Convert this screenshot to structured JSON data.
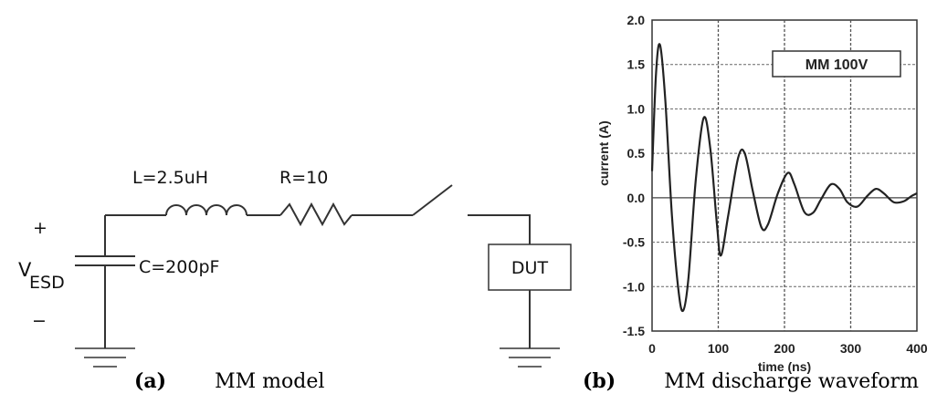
{
  "circuit": {
    "inductor_label": "L=2.5uH",
    "resistor_label": "R=10",
    "capacitor_label": "C=200pF",
    "source_symbol": "V",
    "source_subscript": "ESD",
    "plus_sign": "+",
    "minus_sign": "−",
    "dut_label": "DUT"
  },
  "captions": {
    "a_tag": "(a)",
    "a_text": "MM model",
    "b_tag": "(b)",
    "b_text": "MM discharge waveform"
  },
  "chart_data": {
    "type": "line",
    "title": "",
    "legend": "MM 100V",
    "xlabel": "time (ns)",
    "ylabel": "current (A)",
    "xlim": [
      0,
      400
    ],
    "ylim": [
      -1.5,
      2.0
    ],
    "xticks": [
      "0",
      "100",
      "200",
      "300",
      "400"
    ],
    "yticks": [
      "2.0",
      "1.5",
      "1.0",
      "0.5",
      "0.0",
      "-0.5",
      "-1.0",
      "-1.5"
    ],
    "grid": true,
    "series": [
      {
        "x": [
          0,
          6,
          12,
          20,
          30,
          40,
          47,
          55,
          66,
          78,
          88,
          98,
          104,
          115,
          130,
          140,
          152,
          165,
          175,
          190,
          205,
          215,
          230,
          243,
          255,
          270,
          283,
          295,
          310,
          325,
          338,
          350,
          365,
          380,
          392,
          400
        ],
        "values": [
          0.3,
          1.4,
          1.72,
          1.1,
          -0.2,
          -1.05,
          -1.27,
          -0.9,
          0.2,
          0.9,
          0.55,
          -0.3,
          -0.65,
          -0.2,
          0.45,
          0.5,
          0.08,
          -0.33,
          -0.3,
          0.05,
          0.28,
          0.15,
          -0.16,
          -0.17,
          -0.02,
          0.15,
          0.1,
          -0.05,
          -0.1,
          0.02,
          0.1,
          0.05,
          -0.05,
          -0.04,
          0.02,
          0.05
        ]
      }
    ]
  }
}
